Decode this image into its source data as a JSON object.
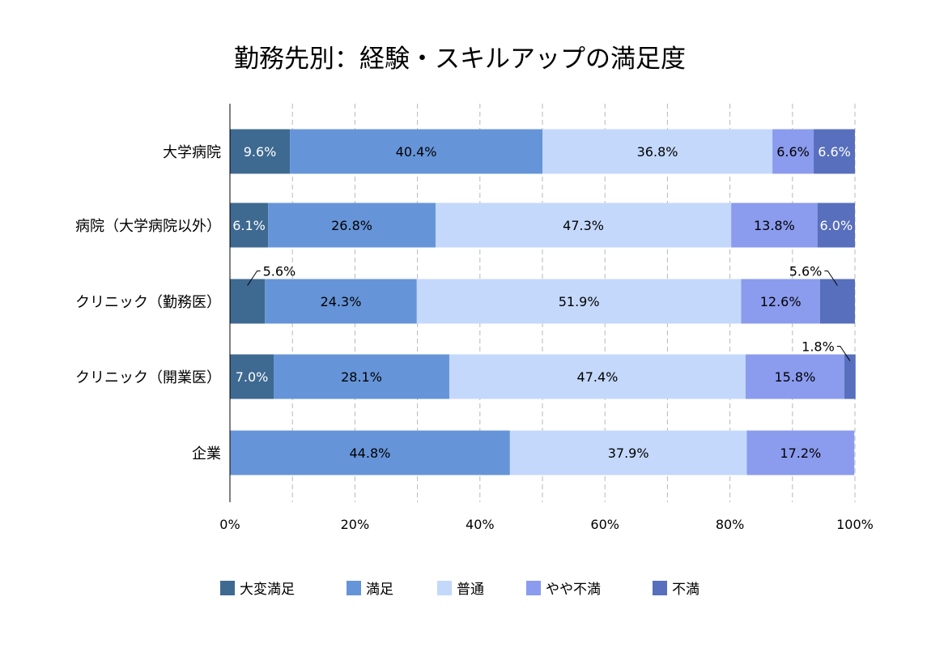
{
  "chart_data": {
    "type": "bar",
    "orientation": "horizontal",
    "stacked": "percent",
    "title": "勤務先別：経験・スキルアップの満足度",
    "categories": [
      "大学病院",
      "病院（大学病院以外）",
      "クリニック（勤務医）",
      "クリニック（開業医）",
      "企業"
    ],
    "series": [
      {
        "name": "大変満足",
        "color": "#3e6991",
        "values": [
          9.6,
          6.1,
          5.6,
          7.0,
          0
        ]
      },
      {
        "name": "満足",
        "color": "#6694d8",
        "values": [
          40.4,
          26.8,
          24.3,
          28.1,
          44.8
        ]
      },
      {
        "name": "普通",
        "color": "#c4d8fb",
        "values": [
          36.8,
          47.3,
          51.9,
          47.4,
          37.9
        ]
      },
      {
        "name": "やや不満",
        "color": "#8b9bee",
        "values": [
          6.6,
          13.8,
          12.6,
          15.8,
          17.2
        ]
      },
      {
        "name": "不満",
        "color": "#576fbc",
        "values": [
          6.6,
          6.0,
          5.6,
          1.8,
          0
        ]
      }
    ],
    "data_labels": [
      [
        "9.6%",
        "40.4%",
        "36.8%",
        "6.6%",
        "6.6%"
      ],
      [
        "6.1%",
        "26.8%",
        "47.3%",
        "13.8%",
        "6.0%"
      ],
      [
        "5.6%",
        "24.3%",
        "51.9%",
        "12.6%",
        "5.6%"
      ],
      [
        "7.0%",
        "28.1%",
        "47.4%",
        "15.8%",
        "1.8%"
      ],
      [
        "",
        "44.8%",
        "37.9%",
        "17.2%",
        ""
      ]
    ],
    "xlim": [
      0,
      100
    ],
    "xticks": [
      "0%",
      "20%",
      "40%",
      "60%",
      "80%",
      "100%"
    ],
    "grid": true,
    "legend_position": "bottom"
  }
}
